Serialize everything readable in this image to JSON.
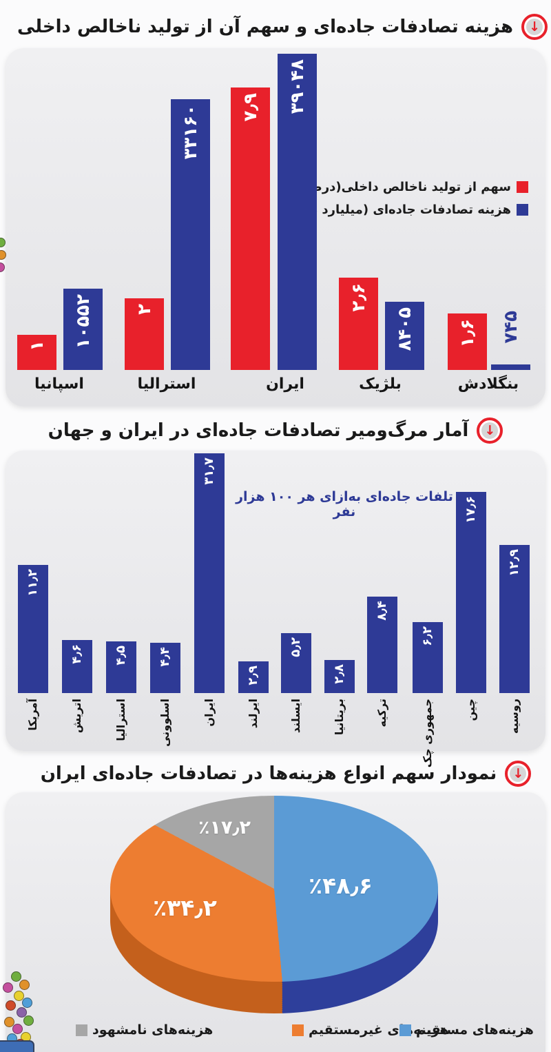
{
  "sections": {
    "s1_title": "هزینه تصادفات جاده‌ای و سهم آن از تولید ناخالص داخلی",
    "s2_title": "آمار مرگ‌ومیر تصادفات جاده‌ای در ایران و جهان",
    "s2_subtitle": "تلفات جاده‌ای به‌ازای هر ۱۰۰ هزار نفر",
    "s3_title": "نمودار سهم انواع هزینه‌ها در تصادفات جاده‌ای ایران"
  },
  "colors": {
    "red": "#e8212b",
    "indigo": "#2e3a96",
    "title_text": "#1a1a1a",
    "panel_bg": "#e9e9eb"
  },
  "chart_data": [
    {
      "type": "bar",
      "title": "هزینه تصادفات جاده‌ای و سهم آن از تولید ناخالص داخلی",
      "categories": [
        "اسپانیا",
        "استرالیا",
        "ایران",
        "بلژیک",
        "بنگلادش"
      ],
      "series": [
        {
          "name": "سهم از تولید ناخالص داخلی(درصد)",
          "color": "#e8212b",
          "values": [
            1,
            2,
            7.9,
            2.6,
            1.6
          ],
          "value_labels": [
            "۱",
            "۲",
            "۷٫۹",
            "۲٫۶",
            "۱٫۶"
          ]
        },
        {
          "name": "هزینه تصادفات جاده‌ای (میلیارد دلار)",
          "color": "#2e3a96",
          "values": [
            10552,
            33160,
            39048,
            8405,
            745
          ],
          "value_labels": [
            "۱۰۵۵۲",
            "۳۳۱۶۰",
            "۳۹۰۴۸",
            "۸۴۰۵",
            "۷۴۵"
          ]
        }
      ],
      "legend_position": "middle-right",
      "bar_label_style": "rotated-vertical-inside"
    },
    {
      "type": "bar",
      "title": "آمار مرگ‌ومیر تصادفات جاده‌ای در ایران و جهان",
      "subtitle": "تلفات جاده‌ای به‌ازای هر ۱۰۰ هزار نفر",
      "color": "#2e3a96",
      "categories": [
        "آمریکا",
        "اتریش",
        "استرالیا",
        "اسلوونی",
        "ایران",
        "ایرلند",
        "ایسلند",
        "بریتانیا",
        "ترکیه",
        "جمهوری چک",
        "چین",
        "روسیه"
      ],
      "values": [
        11.2,
        4.6,
        4.5,
        4.4,
        31.7,
        2.9,
        5.2,
        2.8,
        8.4,
        6.2,
        17.6,
        12.9
      ],
      "value_labels": [
        "۱۱٫۲",
        "۴٫۶",
        "۴٫۵",
        "۴٫۴",
        "۳۱٫۷",
        "۲٫۹",
        "۵٫۲",
        "۲٫۸",
        "۸٫۴",
        "۶٫۲",
        "۱۷٫۶",
        "۱۲٫۹"
      ],
      "bar_label_style": "rotated-vertical-inside"
    },
    {
      "type": "pie",
      "style": "3d",
      "title": "نمودار سهم انواع هزینه‌ها در تصادفات جاده‌ای ایران",
      "slices": [
        {
          "label": "هزینه‌های مستقیم",
          "value": 48.6,
          "display": "٪۴۸٫۶",
          "color": "#5b9bd5",
          "side_color": "#2e3f9b"
        },
        {
          "label": "هزینه‌های غیرمستقیم",
          "value": 34.2,
          "display": "٪۳۴٫۲",
          "color": "#ed7d31",
          "side_color": "#c4601c"
        },
        {
          "label": "هزینه‌های نامشهود",
          "value": 17.2,
          "display": "٪۱۷٫۲",
          "color": "#a6a6a6",
          "side_color": "#8f8f8f"
        }
      ],
      "legend_order_left_to_right": [
        "هزینه‌های نامشهود",
        "هزینه‌های غیرمستقیم",
        "هزینه‌های مستقیم"
      ],
      "legend_position": "bottom"
    }
  ]
}
